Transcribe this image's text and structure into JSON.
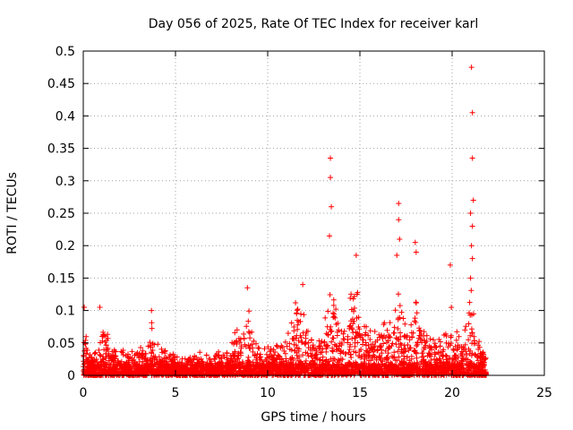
{
  "chart_data": {
    "type": "scatter",
    "title": "Day 056 of 2025, Rate Of TEC Index for receiver karl",
    "xlabel": "GPS time / hours",
    "ylabel": "ROTI / TECUs",
    "xlim": [
      0,
      25
    ],
    "ylim": [
      0,
      0.5
    ],
    "x_ticks": [
      0,
      5,
      10,
      15,
      20,
      25
    ],
    "x_tick_labels": [
      "0",
      "5",
      "10",
      "15",
      "20",
      "25"
    ],
    "y_ticks": [
      0,
      0.05,
      0.1,
      0.15,
      0.2,
      0.25,
      0.3,
      0.35,
      0.4,
      0.45,
      0.5
    ],
    "y_tick_labels": [
      "0",
      "0.05",
      "0.1",
      "0.15",
      "0.2",
      "0.25",
      "0.3",
      "0.35",
      "0.4",
      "0.45",
      "0.5"
    ],
    "grid": true,
    "marker": "+",
    "color": "#ff0000",
    "envelope": {
      "x": [
        0.0,
        0.1,
        0.2,
        0.4,
        0.7,
        0.9,
        1.0,
        1.2,
        1.5,
        2.0,
        2.5,
        3.0,
        3.5,
        3.7,
        3.9,
        4.5,
        5.0,
        5.5,
        6.0,
        6.5,
        7.0,
        7.5,
        8.0,
        8.3,
        8.6,
        8.9,
        9.1,
        9.4,
        9.8,
        10.2,
        10.7,
        11.1,
        11.4,
        11.7,
        11.9,
        12.2,
        12.5,
        12.9,
        13.2,
        13.4,
        13.7,
        14.0,
        14.3,
        14.6,
        14.9,
        15.2,
        15.6,
        16.0,
        16.4,
        16.8,
        17.1,
        17.4,
        17.7,
        18.0,
        18.4,
        18.8,
        19.2,
        19.6,
        19.9,
        20.2,
        20.5,
        20.8,
        21.0,
        21.2,
        21.4,
        21.6,
        21.85
      ],
      "y": [
        0.03,
        0.1,
        0.07,
        0.04,
        0.04,
        0.05,
        0.1,
        0.08,
        0.05,
        0.05,
        0.05,
        0.05,
        0.05,
        0.09,
        0.05,
        0.05,
        0.04,
        0.04,
        0.04,
        0.04,
        0.04,
        0.04,
        0.05,
        0.09,
        0.07,
        0.12,
        0.09,
        0.06,
        0.05,
        0.05,
        0.05,
        0.07,
        0.12,
        0.14,
        0.12,
        0.09,
        0.07,
        0.08,
        0.1,
        0.17,
        0.13,
        0.09,
        0.12,
        0.15,
        0.17,
        0.11,
        0.08,
        0.08,
        0.1,
        0.09,
        0.15,
        0.1,
        0.08,
        0.15,
        0.09,
        0.07,
        0.06,
        0.07,
        0.13,
        0.07,
        0.06,
        0.1,
        0.15,
        0.1,
        0.07,
        0.05,
        0.04
      ]
    },
    "spikes": [
      {
        "x": 0.05,
        "y": 0.105
      },
      {
        "x": 0.9,
        "y": 0.105
      },
      {
        "x": 3.7,
        "y": 0.1
      },
      {
        "x": 8.9,
        "y": 0.135
      },
      {
        "x": 11.9,
        "y": 0.14
      },
      {
        "x": 13.4,
        "y": 0.335
      },
      {
        "x": 13.4,
        "y": 0.305
      },
      {
        "x": 13.45,
        "y": 0.26
      },
      {
        "x": 13.35,
        "y": 0.215
      },
      {
        "x": 14.8,
        "y": 0.185
      },
      {
        "x": 17.1,
        "y": 0.265
      },
      {
        "x": 17.1,
        "y": 0.24
      },
      {
        "x": 17.15,
        "y": 0.21
      },
      {
        "x": 17.0,
        "y": 0.185
      },
      {
        "x": 18.0,
        "y": 0.205
      },
      {
        "x": 18.05,
        "y": 0.19
      },
      {
        "x": 19.9,
        "y": 0.17
      },
      {
        "x": 21.05,
        "y": 0.475
      },
      {
        "x": 21.1,
        "y": 0.405
      },
      {
        "x": 21.1,
        "y": 0.335
      },
      {
        "x": 21.15,
        "y": 0.27
      },
      {
        "x": 21.0,
        "y": 0.25
      },
      {
        "x": 21.1,
        "y": 0.23
      },
      {
        "x": 21.05,
        "y": 0.2
      },
      {
        "x": 21.1,
        "y": 0.18
      },
      {
        "x": 21.0,
        "y": 0.15
      }
    ],
    "x_end": 21.85
  }
}
